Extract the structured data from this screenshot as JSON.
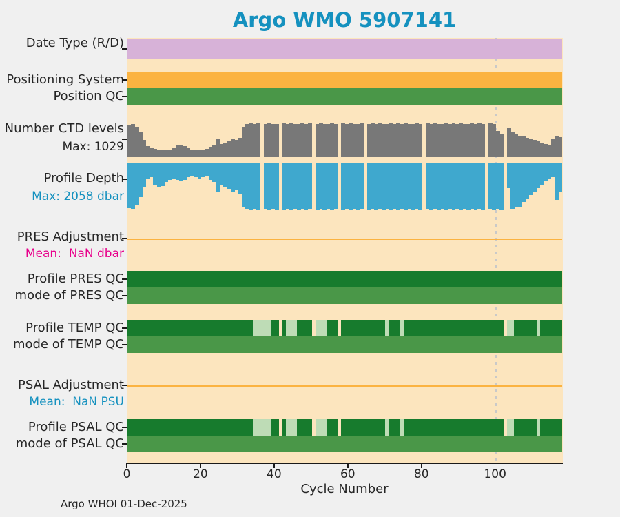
{
  "title": "Argo WMO 5907141",
  "footer": "Argo WHOI 01-Dec-2025",
  "colors": {
    "page_bg": "#F0F0F0",
    "plot_bg": "#FCE5BE",
    "purple": "#D7B2D8",
    "orange": "#FBB341",
    "green_mid": "#4A9748",
    "green_dark": "#177B2D",
    "green_pale": "#BEDCB6",
    "gray": "#787878",
    "blue": "#3FA8CE",
    "title_blue": "#1591BF",
    "magenta": "#E8008B",
    "dotted_line": "#C9C9C9",
    "axis": "#1a1a1a",
    "text": "#262626"
  },
  "chart_data": {
    "type": "bar",
    "title": "Argo WMO 5907141",
    "xlabel": "Cycle Number",
    "x_range": [
      0,
      118
    ],
    "x_ticks": [
      0,
      20,
      40,
      60,
      80,
      100
    ],
    "dotted_marker_cycle": 100,
    "missing_cycles": [
      37,
      42,
      51,
      58,
      65,
      81,
      98,
      103
    ],
    "rows": [
      {
        "id": "date_type",
        "label": "Date Type (R/D)",
        "kind": "band",
        "color_key": "purple",
        "span": [
          1,
          118
        ]
      },
      {
        "id": "positioning_system",
        "label": "Positioning System",
        "kind": "band",
        "color_key": "orange",
        "span": [
          1,
          118
        ]
      },
      {
        "id": "position_qc",
        "label": "Position QC",
        "kind": "band",
        "color_key": "green_mid",
        "span": [
          1,
          118
        ]
      },
      {
        "id": "ctd_levels",
        "label": "Number CTD levels",
        "sublabel": "Max: 1029",
        "sublabel_color_key": "text",
        "kind": "bars_up",
        "color_key": "gray",
        "max": 1029,
        "values": [
          957,
          978,
          906,
          741,
          515,
          329,
          278,
          247,
          226,
          216,
          206,
          226,
          288,
          340,
          360,
          329,
          268,
          226,
          216,
          206,
          216,
          247,
          309,
          340,
          535,
          391,
          432,
          484,
          535,
          515,
          566,
          906,
          978,
          1029,
          988,
          1008,
          null,
          978,
          1018,
          988,
          998,
          null,
          1008,
          978,
          1018,
          988,
          998,
          1008,
          978,
          1018,
          null,
          988,
          1008,
          978,
          998,
          1018,
          988,
          null,
          1008,
          978,
          1018,
          988,
          998,
          1008,
          null,
          978,
          1018,
          988,
          1008,
          978,
          998,
          1018,
          988,
          1008,
          978,
          1018,
          988,
          998,
          1008,
          978,
          null,
          1018,
          988,
          1008,
          978,
          998,
          1018,
          988,
          1008,
          978,
          1018,
          988,
          998,
          1008,
          978,
          1018,
          988,
          null,
          1008,
          978,
          772,
          700,
          null,
          875,
          745,
          670,
          640,
          610,
          580,
          550,
          520,
          475,
          430,
          390,
          360,
          555,
          638,
          595
        ]
      },
      {
        "id": "profile_depth",
        "label": "Profile Depth",
        "sublabel": "Max: 2058 dbar",
        "sublabel_color_key": "title_blue",
        "kind": "bars_down",
        "color_key": "blue",
        "max": 2058,
        "values": [
          1955,
          1995,
          1830,
          1480,
          1030,
          700,
          620,
          925,
          1030,
          990,
          820,
          720,
          680,
          740,
          780,
          720,
          620,
          575,
          615,
          660,
          615,
          575,
          720,
          825,
          1275,
          925,
          1030,
          1130,
          1235,
          1195,
          1340,
          1900,
          2000,
          2058,
          1995,
          2020,
          null,
          1995,
          2040,
          2000,
          2020,
          null,
          2040,
          1995,
          2020,
          2000,
          2040,
          1995,
          2020,
          2000,
          null,
          2040,
          1995,
          2020,
          2000,
          2040,
          1995,
          null,
          2020,
          2000,
          2040,
          1995,
          2020,
          2000,
          null,
          2040,
          1995,
          2020,
          2000,
          2040,
          1995,
          2020,
          2000,
          2040,
          1995,
          2020,
          2000,
          2040,
          1995,
          2020,
          null,
          2000,
          2040,
          1995,
          2020,
          2000,
          2040,
          1995,
          2020,
          2000,
          2040,
          1995,
          2020,
          2000,
          2040,
          1995,
          2020,
          null,
          2000,
          2040,
          1995,
          2020,
          null,
          1080,
          2000,
          1950,
          1900,
          1700,
          1550,
          1400,
          1250,
          1100,
          950,
          800,
          700,
          600,
          1600,
          1250
        ]
      },
      {
        "id": "pres_adjustment",
        "label": "PRES Adjustment",
        "sublabel": "Mean:  NaN dbar",
        "sublabel_color_key": "magenta",
        "kind": "hline",
        "color_key": "orange",
        "mean": "NaN dbar"
      },
      {
        "id": "profile_pres_qc",
        "label": "Profile PRES QC",
        "kind": "segments",
        "segments": [
          [
            1,
            118,
            "green_dark"
          ]
        ]
      },
      {
        "id": "mode_pres_qc",
        "label": "mode of PRES QC",
        "kind": "segments",
        "segments": [
          [
            1,
            118,
            "green_mid"
          ]
        ]
      },
      {
        "id": "profile_temp_qc",
        "label": "Profile TEMP QC",
        "kind": "segments",
        "segments": [
          [
            1,
            34,
            "green_dark"
          ],
          [
            35,
            39,
            "green_pale"
          ],
          [
            40,
            41,
            "green_dark"
          ],
          [
            43,
            43,
            "green_dark"
          ],
          [
            44,
            46,
            "green_pale"
          ],
          [
            47,
            50,
            "green_dark"
          ],
          [
            52,
            54,
            "green_pale"
          ],
          [
            55,
            57,
            "green_dark"
          ],
          [
            59,
            70,
            "green_dark"
          ],
          [
            71,
            71,
            "green_pale"
          ],
          [
            72,
            74,
            "green_dark"
          ],
          [
            75,
            75,
            "green_pale"
          ],
          [
            76,
            102,
            "green_dark"
          ],
          [
            104,
            105,
            "green_pale"
          ],
          [
            106,
            111,
            "green_dark"
          ],
          [
            112,
            112,
            "green_pale"
          ],
          [
            113,
            118,
            "green_dark"
          ]
        ]
      },
      {
        "id": "mode_temp_qc",
        "label": "mode of TEMP QC",
        "kind": "segments",
        "segments": [
          [
            1,
            118,
            "green_mid"
          ]
        ]
      },
      {
        "id": "psal_adjustment",
        "label": "PSAL Adjustment",
        "sublabel": "Mean:  NaN PSU",
        "sublabel_color_key": "title_blue",
        "kind": "hline",
        "color_key": "orange",
        "mean": "NaN PSU"
      },
      {
        "id": "profile_psal_qc",
        "label": "Profile PSAL QC",
        "kind": "segments",
        "segments": [
          [
            1,
            34,
            "green_dark"
          ],
          [
            35,
            39,
            "green_pale"
          ],
          [
            40,
            41,
            "green_dark"
          ],
          [
            43,
            43,
            "green_dark"
          ],
          [
            44,
            46,
            "green_pale"
          ],
          [
            47,
            50,
            "green_dark"
          ],
          [
            52,
            54,
            "green_pale"
          ],
          [
            55,
            57,
            "green_dark"
          ],
          [
            59,
            70,
            "green_dark"
          ],
          [
            71,
            71,
            "green_pale"
          ],
          [
            72,
            74,
            "green_dark"
          ],
          [
            75,
            75,
            "green_pale"
          ],
          [
            76,
            102,
            "green_dark"
          ],
          [
            104,
            105,
            "green_pale"
          ],
          [
            106,
            111,
            "green_dark"
          ],
          [
            112,
            112,
            "green_pale"
          ],
          [
            113,
            118,
            "green_dark"
          ]
        ]
      },
      {
        "id": "mode_psal_qc",
        "label": "mode of PSAL QC",
        "kind": "segments",
        "segments": [
          [
            1,
            118,
            "green_mid"
          ]
        ]
      }
    ]
  }
}
